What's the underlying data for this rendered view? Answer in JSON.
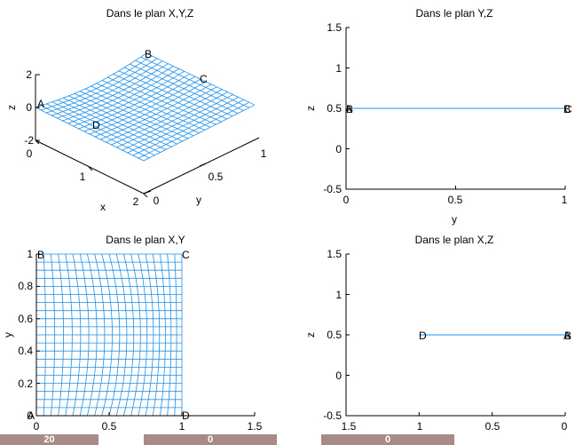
{
  "figure": {
    "controls": [
      {
        "value": "20"
      },
      {
        "value": "0"
      },
      {
        "value": "0"
      }
    ],
    "colors": {
      "mesh": "#1e90e8",
      "axes": "#000000",
      "background": "#ffffff",
      "control": "#a88a88"
    }
  },
  "chart_data": [
    {
      "type": "surface3d",
      "title": "Dans le plan X,Y,Z",
      "xlabel": "x",
      "ylabel": "y",
      "zlabel": "z",
      "xlim": [
        0,
        2
      ],
      "ylim": [
        0,
        1
      ],
      "zlim": [
        -2,
        2
      ],
      "xticks": [
        "0",
        "1",
        "2"
      ],
      "yticks": [
        "0",
        "0.5",
        "1"
      ],
      "zticks": [
        "-2",
        "0",
        "2"
      ],
      "corners": [
        {
          "label": "A",
          "x": 0,
          "y": 0,
          "z": 0
        },
        {
          "label": "B",
          "x": 0,
          "y": 1,
          "z": 0
        },
        {
          "label": "C",
          "x": 2,
          "y": 1,
          "z": 0
        },
        {
          "label": "D",
          "x": 2,
          "y": 0,
          "z": 0
        }
      ],
      "grid": false
    },
    {
      "type": "line",
      "title": "Dans le plan Y,Z",
      "xlabel": "y",
      "ylabel": "z",
      "xlim": [
        0,
        1
      ],
      "ylim": [
        -0.5,
        1.5
      ],
      "xticks": [
        "0",
        "0.5",
        "1"
      ],
      "yticks": [
        "-0.5",
        "0",
        "0.5",
        "1",
        "1.5"
      ],
      "series": [
        {
          "x": [
            0,
            1
          ],
          "y": [
            0.5,
            0.5
          ]
        }
      ],
      "point_labels": [
        {
          "text": "A",
          "x": 0,
          "y": 0.5
        },
        {
          "text": "B",
          "x": 0,
          "y": 0.5
        },
        {
          "text": "B",
          "x": 1,
          "y": 0.5
        },
        {
          "text": "C",
          "x": 1,
          "y": 0.5
        }
      ],
      "grid": false
    },
    {
      "type": "mesh",
      "title": "Dans le plan X,Y",
      "xlabel": "",
      "ylabel": "y",
      "xlim": [
        0,
        1.5
      ],
      "ylim": [
        0,
        1
      ],
      "xticks": [
        "0",
        "0.5",
        "1",
        "1.5"
      ],
      "yticks": [
        "0",
        "0.2",
        "0.4",
        "0.6",
        "0.8",
        "1"
      ],
      "grid_size": 20,
      "corners": [
        {
          "label": "A",
          "x": 0,
          "y": 0
        },
        {
          "label": "B",
          "x": 0,
          "y": 1
        },
        {
          "label": "C",
          "x": 1,
          "y": 1
        },
        {
          "label": "D",
          "x": 1,
          "y": 0
        }
      ],
      "grid": false
    },
    {
      "type": "line",
      "title": "Dans le plan X,Z",
      "xlabel": "",
      "ylabel": "z",
      "xlim": [
        1.5,
        0
      ],
      "ylim": [
        -0.5,
        1.5
      ],
      "xticks": [
        "1.5",
        "1",
        "0.5",
        "0"
      ],
      "yticks": [
        "-0.5",
        "0",
        "0.5",
        "1",
        "1.5"
      ],
      "series": [
        {
          "x": [
            1,
            0
          ],
          "y": [
            0.5,
            0.5
          ]
        }
      ],
      "point_labels": [
        {
          "text": "D",
          "x": 1,
          "y": 0.5
        },
        {
          "text": "A",
          "x": 0,
          "y": 0.5
        },
        {
          "text": "B",
          "x": 0,
          "y": 0.5
        }
      ],
      "grid": false
    }
  ]
}
